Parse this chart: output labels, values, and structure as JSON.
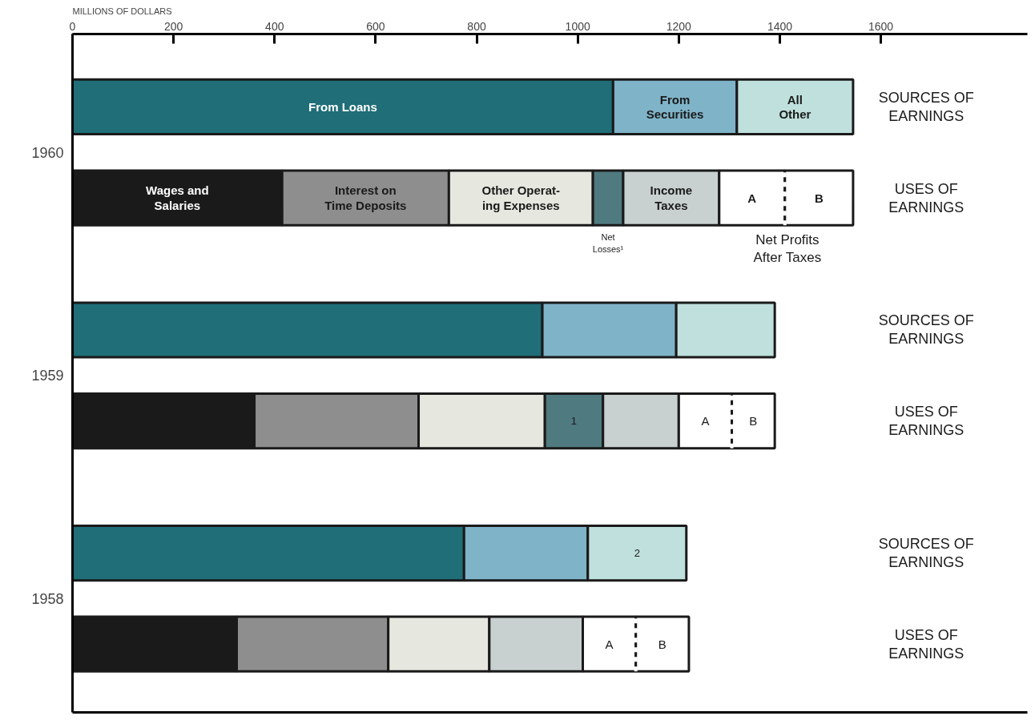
{
  "chart_data": {
    "type": "bar",
    "orientation": "horizontal",
    "stacked": true,
    "xlabel": "MILLIONS OF DOLLARS",
    "categories": [
      "SOURCES OF\nEARNINGS",
      "USES OF\nEARNINGS",
      "SOURCES OF\nEARNINGS",
      "USES OF\nEARNINGS",
      "SOURCES OF\nEARNINGS",
      "USES OF\nEARNINGS"
    ],
    "xlim": [
      0,
      1890
    ],
    "xticks": [
      0,
      200,
      400,
      600,
      800,
      1000,
      1200,
      1400,
      1600
    ],
    "grid": false,
    "legend": false,
    "series": [
      {
        "name": "From Loans",
        "color": "#1f6e78",
        "values": [
          1070,
          null,
          930,
          null,
          775,
          null
        ]
      },
      {
        "name": "From\nSecurities",
        "color": "#7fb3c8",
        "values": [
          245,
          null,
          265,
          null,
          245,
          null
        ]
      },
      {
        "name": "All\nOther",
        "color": "#bfe0dc",
        "values": [
          230,
          null,
          195,
          null,
          195,
          null
        ]
      },
      {
        "name": "Wages and\nSalaries",
        "color": "#1a1a1a",
        "values": [
          null,
          415,
          null,
          360,
          null,
          325
        ]
      },
      {
        "name": "Interest on\nTime Deposits",
        "color": "#8e8e8e",
        "values": [
          null,
          330,
          null,
          325,
          null,
          300
        ]
      },
      {
        "name": "Other Operat-\ning Expenses",
        "color": "#e6e8e0",
        "values": [
          null,
          285,
          null,
          250,
          null,
          200
        ]
      },
      {
        "name": "Net\nLosses¹",
        "color": "#4f7a80",
        "values": [
          null,
          60,
          null,
          115,
          null,
          null
        ]
      },
      {
        "name": "Income\nTaxes",
        "color": "#c9d0d0",
        "values": [
          null,
          190,
          null,
          150,
          null,
          185
        ]
      },
      {
        "name": "A",
        "color": "#ffffff",
        "values": [
          null,
          130,
          null,
          105,
          null,
          105
        ],
        "value_labels": [
          null,
          null,
          null,
          "A",
          null,
          "A"
        ]
      },
      {
        "name": "B",
        "color": "#ffffff",
        "line_style": "dashed",
        "values": [
          null,
          135,
          null,
          85,
          null,
          105
        ],
        "value_labels": [
          null,
          null,
          null,
          "B",
          null,
          "B"
        ]
      }
    ],
    "annotations": [
      "1960",
      "1959",
      "1958",
      {
        "text": "Net Profits\nAfter Taxes",
        "x": 1415,
        "y": "USES OF\nEARNINGS"
      },
      "1",
      "2"
    ]
  }
}
